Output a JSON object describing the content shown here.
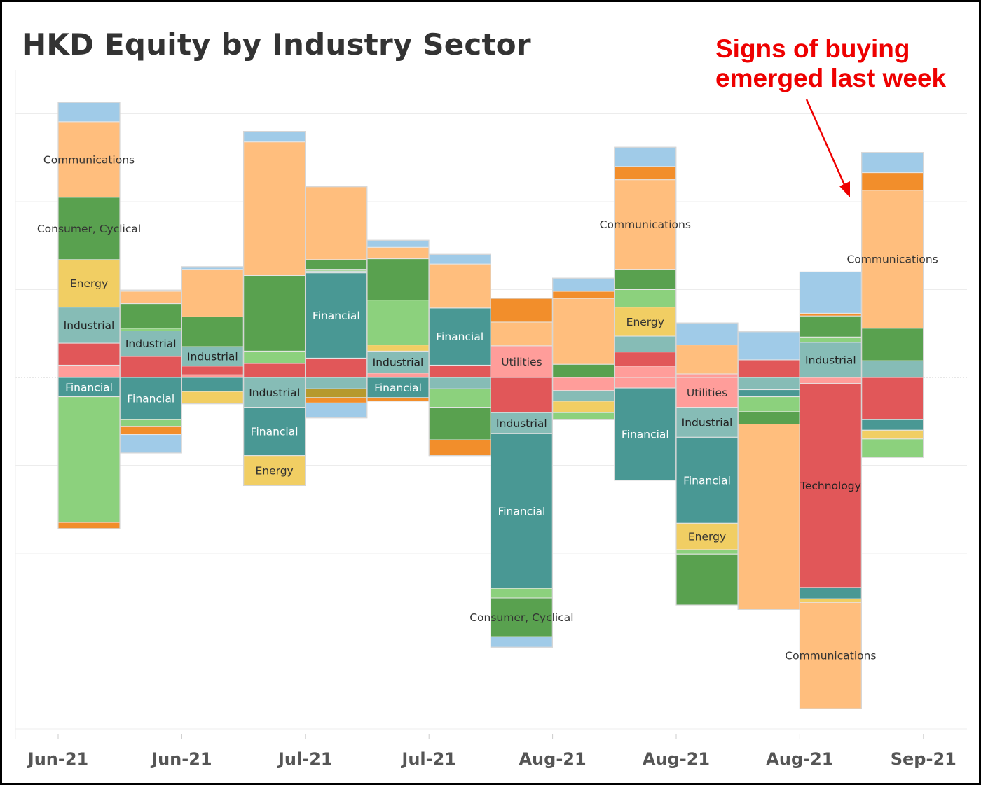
{
  "chart_data": {
    "type": "bar",
    "stacked": true,
    "title": "HKD Equity by Industry Sector",
    "annotation": [
      "Signs of buying",
      "emerged last week"
    ],
    "x_tick_labels": [
      "Jun-21",
      "Jun-21",
      "Jul-21",
      "Jul-21",
      "Aug-21",
      "Aug-21",
      "Aug-21",
      "Sep-21"
    ],
    "grid": "horizontal",
    "legend": "none",
    "y_unit": "relative net flow (zero = baseline, positive = buying)",
    "ylim": [
      -4,
      3.6
    ],
    "colors": {
      "Communications": "#ffbe7d",
      "Consumer, Cyclical": "#59a14f",
      "Consumer, Non-cyclical": "#8cd17d",
      "Energy": "#f1ce63",
      "Industrial": "#86bcb6",
      "Financial": "#499894",
      "Technology": "#e15759",
      "Utilities": "#ff9d9a",
      "Basic Materials": "#a0cbe8",
      "Diversified": "#f28e2b",
      "Funds": "#b6992d"
    },
    "bars": [
      {
        "pos": [
          {
            "sector": "Diversified",
            "value": 0
          },
          {
            "sector": "Utilities",
            "value": 0.14
          },
          {
            "sector": "Technology",
            "value": 0.25
          },
          {
            "sector": "Industrial",
            "value": 0.41
          },
          {
            "sector": "Energy",
            "value": 0.54
          },
          {
            "sector": "Consumer, Cyclical",
            "value": 0.71
          },
          {
            "sector": "Communications",
            "value": 0.86
          },
          {
            "sector": "Basic Materials",
            "value": 0.22
          }
        ],
        "neg": [
          {
            "sector": "Financial",
            "value": -0.22
          },
          {
            "sector": "Consumer, Non-cyclical",
            "value": -1.43
          },
          {
            "sector": "Diversified",
            "value": -0.07
          }
        ],
        "labels": [
          "Communications",
          "Consumer, Cyclical",
          "Energy",
          "Industrial",
          "Financial"
        ]
      },
      {
        "pos": [
          {
            "sector": "Technology",
            "value": 0.24
          },
          {
            "sector": "Industrial",
            "value": 0.29
          },
          {
            "sector": "Consumer, Non-cyclical",
            "value": 0.03
          },
          {
            "sector": "Consumer, Cyclical",
            "value": 0.28
          },
          {
            "sector": "Communications",
            "value": 0.14
          },
          {
            "sector": "Basic Materials",
            "value": 0.01
          }
        ],
        "neg": [
          {
            "sector": "Financial",
            "value": -0.48
          },
          {
            "sector": "Consumer, Non-cyclical",
            "value": -0.08
          },
          {
            "sector": "Diversified",
            "value": -0.09
          },
          {
            "sector": "Basic Materials",
            "value": -0.21
          }
        ],
        "labels": [
          "Industrial",
          "Financial"
        ]
      },
      {
        "pos": [
          {
            "sector": "Utilities",
            "value": 0.03
          },
          {
            "sector": "Technology",
            "value": 0.1
          },
          {
            "sector": "Industrial",
            "value": 0.22
          },
          {
            "sector": "Consumer, Cyclical",
            "value": 0.34
          },
          {
            "sector": "Communications",
            "value": 0.54
          },
          {
            "sector": "Basic Materials",
            "value": 0.03
          }
        ],
        "neg": [
          {
            "sector": "Financial",
            "value": -0.16
          },
          {
            "sector": "Energy",
            "value": -0.14
          }
        ],
        "labels": [
          "Industrial"
        ]
      },
      {
        "pos": [
          {
            "sector": "Technology",
            "value": 0.16
          },
          {
            "sector": "Consumer, Non-cyclical",
            "value": 0.14
          },
          {
            "sector": "Consumer, Cyclical",
            "value": 0.86
          },
          {
            "sector": "Communications",
            "value": 1.52
          },
          {
            "sector": "Basic Materials",
            "value": 0.12
          }
        ],
        "neg": [
          {
            "sector": "Industrial",
            "value": -0.34
          },
          {
            "sector": "Financial",
            "value": -0.55
          },
          {
            "sector": "Energy",
            "value": -0.34
          }
        ],
        "labels": [
          "Industrial",
          "Financial",
          "Energy"
        ]
      },
      {
        "pos": [
          {
            "sector": "Technology",
            "value": 0.22
          },
          {
            "sector": "Financial",
            "value": 0.97
          },
          {
            "sector": "Industrial",
            "value": 0.02
          },
          {
            "sector": "Consumer, Non-cyclical",
            "value": 0.02
          },
          {
            "sector": "Consumer, Cyclical",
            "value": 0.11
          },
          {
            "sector": "Communications",
            "value": 0.83
          }
        ],
        "neg": [
          {
            "sector": "Industrial",
            "value": -0.13
          },
          {
            "sector": "Funds",
            "value": -0.1
          },
          {
            "sector": "Diversified",
            "value": -0.06
          },
          {
            "sector": "Basic Materials",
            "value": -0.17
          }
        ],
        "labels": [
          "Financial"
        ]
      },
      {
        "pos": [
          {
            "sector": "Utilities",
            "value": 0.05
          },
          {
            "sector": "Industrial",
            "value": 0.25
          },
          {
            "sector": "Energy",
            "value": 0.07
          },
          {
            "sector": "Consumer, Non-cyclical",
            "value": 0.51
          },
          {
            "sector": "Consumer, Cyclical",
            "value": 0.47
          },
          {
            "sector": "Communications",
            "value": 0.13
          },
          {
            "sector": "Basic Materials",
            "value": 0.08
          }
        ],
        "neg": [
          {
            "sector": "Financial",
            "value": -0.23
          },
          {
            "sector": "Diversified",
            "value": -0.04
          }
        ],
        "labels": [
          "Industrial",
          "Financial"
        ]
      },
      {
        "pos": [
          {
            "sector": "Technology",
            "value": 0.14
          },
          {
            "sector": "Financial",
            "value": 0.65
          },
          {
            "sector": "Communications",
            "value": 0.5
          },
          {
            "sector": "Basic Materials",
            "value": 0.11
          }
        ],
        "neg": [
          {
            "sector": "Industrial",
            "value": -0.13
          },
          {
            "sector": "Consumer, Non-cyclical",
            "value": -0.21
          },
          {
            "sector": "Consumer, Cyclical",
            "value": -0.37
          },
          {
            "sector": "Diversified",
            "value": -0.18
          }
        ],
        "labels": [
          "Financial"
        ]
      },
      {
        "pos": [
          {
            "sector": "Utilities",
            "value": 0.36
          },
          {
            "sector": "Communications",
            "value": 0.27
          },
          {
            "sector": "Diversified",
            "value": 0.27
          }
        ],
        "neg": [
          {
            "sector": "Technology",
            "value": -0.4
          },
          {
            "sector": "Industrial",
            "value": -0.24
          },
          {
            "sector": "Financial",
            "value": -1.76
          },
          {
            "sector": "Consumer, Non-cyclical",
            "value": -0.11
          },
          {
            "sector": "Consumer, Cyclical",
            "value": -0.44
          },
          {
            "sector": "Basic Materials",
            "value": -0.12
          }
        ],
        "labels": [
          "Utilities",
          "Industrial",
          "Financial",
          "Consumer, Cyclical"
        ]
      },
      {
        "pos": [
          {
            "sector": "Consumer, Cyclical",
            "value": 0.15
          },
          {
            "sector": "Communications",
            "value": 0.75
          },
          {
            "sector": "Diversified",
            "value": 0.08
          },
          {
            "sector": "Basic Materials",
            "value": 0.15
          }
        ],
        "neg": [
          {
            "sector": "Utilities",
            "value": -0.15
          },
          {
            "sector": "Industrial",
            "value": -0.12
          },
          {
            "sector": "Energy",
            "value": -0.13
          },
          {
            "sector": "Consumer, Non-cyclical",
            "value": -0.08
          }
        ],
        "labels": []
      },
      {
        "pos": [
          {
            "sector": "Utilities",
            "value": 0.13
          },
          {
            "sector": "Technology",
            "value": 0.16
          },
          {
            "sector": "Industrial",
            "value": 0.18
          },
          {
            "sector": "Energy",
            "value": 0.33
          },
          {
            "sector": "Consumer, Non-cyclical",
            "value": 0.2
          },
          {
            "sector": "Consumer, Cyclical",
            "value": 0.23
          },
          {
            "sector": "Communications",
            "value": 1.02
          },
          {
            "sector": "Diversified",
            "value": 0.15
          },
          {
            "sector": "Basic Materials",
            "value": 0.22
          }
        ],
        "neg": [
          {
            "sector": "Utilities",
            "value": -0.12
          },
          {
            "sector": "Financial",
            "value": -1.05
          }
        ],
        "labels": [
          "Communications",
          "Energy",
          "Financial"
        ]
      },
      {
        "pos": [
          {
            "sector": "Utilities",
            "value": 0.04
          },
          {
            "sector": "Communications",
            "value": 0.33
          },
          {
            "sector": "Basic Materials",
            "value": 0.25
          }
        ],
        "neg": [
          {
            "sector": "Utilities",
            "value": -0.34
          },
          {
            "sector": "Industrial",
            "value": -0.34
          },
          {
            "sector": "Financial",
            "value": -0.98
          },
          {
            "sector": "Energy",
            "value": -0.3
          },
          {
            "sector": "Consumer, Non-cyclical",
            "value": -0.05
          },
          {
            "sector": "Consumer, Cyclical",
            "value": -0.58
          }
        ],
        "labels": [
          "Utilities",
          "Industrial",
          "Financial",
          "Energy"
        ]
      },
      {
        "pos": [
          {
            "sector": "Technology",
            "value": 0.2
          },
          {
            "sector": "Basic Materials",
            "value": 0.32
          }
        ],
        "neg": [
          {
            "sector": "Industrial",
            "value": -0.14
          },
          {
            "sector": "Financial",
            "value": -0.08
          },
          {
            "sector": "Consumer, Non-cyclical",
            "value": -0.17
          },
          {
            "sector": "Consumer, Cyclical",
            "value": -0.14
          },
          {
            "sector": "Communications",
            "value": -2.11
          }
        ],
        "labels": []
      },
      {
        "pos": [
          {
            "sector": "Industrial",
            "value": 0.4
          },
          {
            "sector": "Consumer, Non-cyclical",
            "value": 0.06
          },
          {
            "sector": "Consumer, Cyclical",
            "value": 0.24
          },
          {
            "sector": "Diversified",
            "value": 0.03
          },
          {
            "sector": "Basic Materials",
            "value": 0.47
          }
        ],
        "neg": [
          {
            "sector": "Utilities",
            "value": -0.07
          },
          {
            "sector": "Technology",
            "value": -2.32
          },
          {
            "sector": "Financial",
            "value": -0.13
          },
          {
            "sector": "Energy",
            "value": -0.04
          },
          {
            "sector": "Communications",
            "value": -1.21
          }
        ],
        "labels": [
          "Industrial",
          "Technology",
          "Communications"
        ]
      },
      {
        "pos": [
          {
            "sector": "Industrial",
            "value": 0.19
          },
          {
            "sector": "Consumer, Cyclical",
            "value": 0.37
          },
          {
            "sector": "Communications",
            "value": 1.57
          },
          {
            "sector": "Diversified",
            "value": 0.2
          },
          {
            "sector": "Basic Materials",
            "value": 0.23
          }
        ],
        "neg": [
          {
            "sector": "Technology",
            "value": -0.48
          },
          {
            "sector": "Financial",
            "value": -0.12
          },
          {
            "sector": "Energy",
            "value": -0.1
          },
          {
            "sector": "Consumer, Non-cyclical",
            "value": -0.21
          }
        ],
        "labels": [
          "Communications"
        ]
      }
    ]
  }
}
